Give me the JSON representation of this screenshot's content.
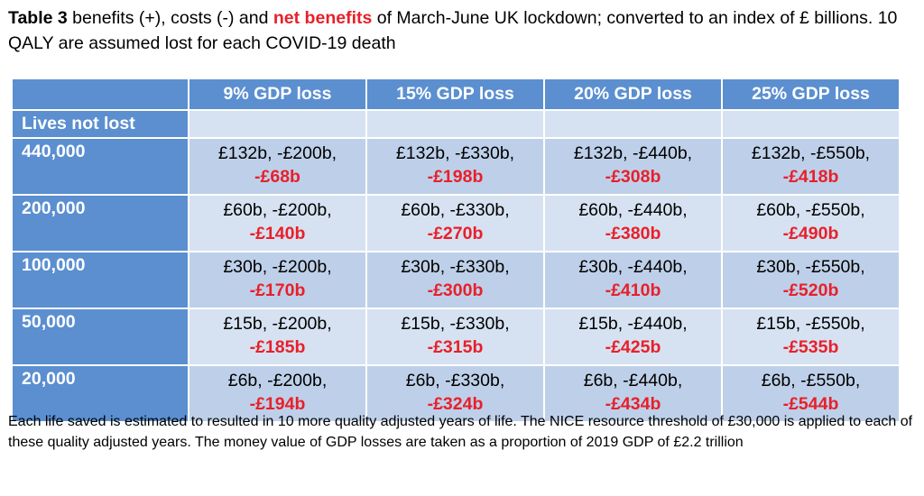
{
  "caption": {
    "table_number": "Table 3",
    "part1": " benefits (+), costs (-) and ",
    "highlight": "net benefits",
    "part2": " of March-June UK lockdown; converted to an index of £ billions.  10 QALY are assumed lost for each COVID-19 death"
  },
  "table": {
    "columns": [
      "9% GDP loss",
      "15% GDP loss",
      "20% GDP loss",
      "25% GDP loss"
    ],
    "row_header_label": "Lives not lost",
    "rows": [
      {
        "label": "440,000",
        "cells": [
          {
            "values": "£132b, -£200b,",
            "net": "-£68b"
          },
          {
            "values": "£132b, -£330b,",
            "net": "-£198b"
          },
          {
            "values": "£132b, -£440b,",
            "net": "-£308b"
          },
          {
            "values": "£132b, -£550b,",
            "net": "-£418b"
          }
        ]
      },
      {
        "label": "200,000",
        "cells": [
          {
            "values": "£60b, -£200b,",
            "net": "-£140b"
          },
          {
            "values": "£60b, -£330b,",
            "net": "-£270b"
          },
          {
            "values": "£60b, -£440b,",
            "net": "-£380b"
          },
          {
            "values": "£60b, -£550b,",
            "net": "-£490b"
          }
        ]
      },
      {
        "label": "100,000",
        "cells": [
          {
            "values": "£30b, -£200b,",
            "net": "-£170b"
          },
          {
            "values": "£30b, -£330b,",
            "net": "-£300b"
          },
          {
            "values": "£30b, -£440b,",
            "net": "-£410b"
          },
          {
            "values": "£30b, -£550b,",
            "net": "-£520b"
          }
        ]
      },
      {
        "label": "50,000",
        "cells": [
          {
            "values": "£15b, -£200b,",
            "net": "-£185b"
          },
          {
            "values": "£15b, -£330b,",
            "net": "-£315b"
          },
          {
            "values": "£15b, -£440b,",
            "net": "-£425b"
          },
          {
            "values": "£15b, -£550b,",
            "net": "-£535b"
          }
        ]
      },
      {
        "label": "20,000",
        "cells": [
          {
            "values": "£6b, -£200b,",
            "net": "-£194b"
          },
          {
            "values": "£6b, -£330b,",
            "net": "-£324b"
          },
          {
            "values": "£6b, -£440b,",
            "net": "-£434b"
          },
          {
            "values": "£6b, -£550b,",
            "net": "-£544b"
          }
        ]
      }
    ]
  },
  "footnote": "Each life saved is estimated to resulted in 10 more quality adjusted years of life. The NICE resource threshold of £30,000 is applied to each of these quality adjusted years.  The money value of GDP losses are taken as a proportion of 2019 GDP of £2.2 trillion",
  "colors": {
    "header_blue": "#5b8fd0",
    "row_dark": "#bed0e9",
    "row_light": "#d6e2f1",
    "net_red": "#e8202a"
  }
}
